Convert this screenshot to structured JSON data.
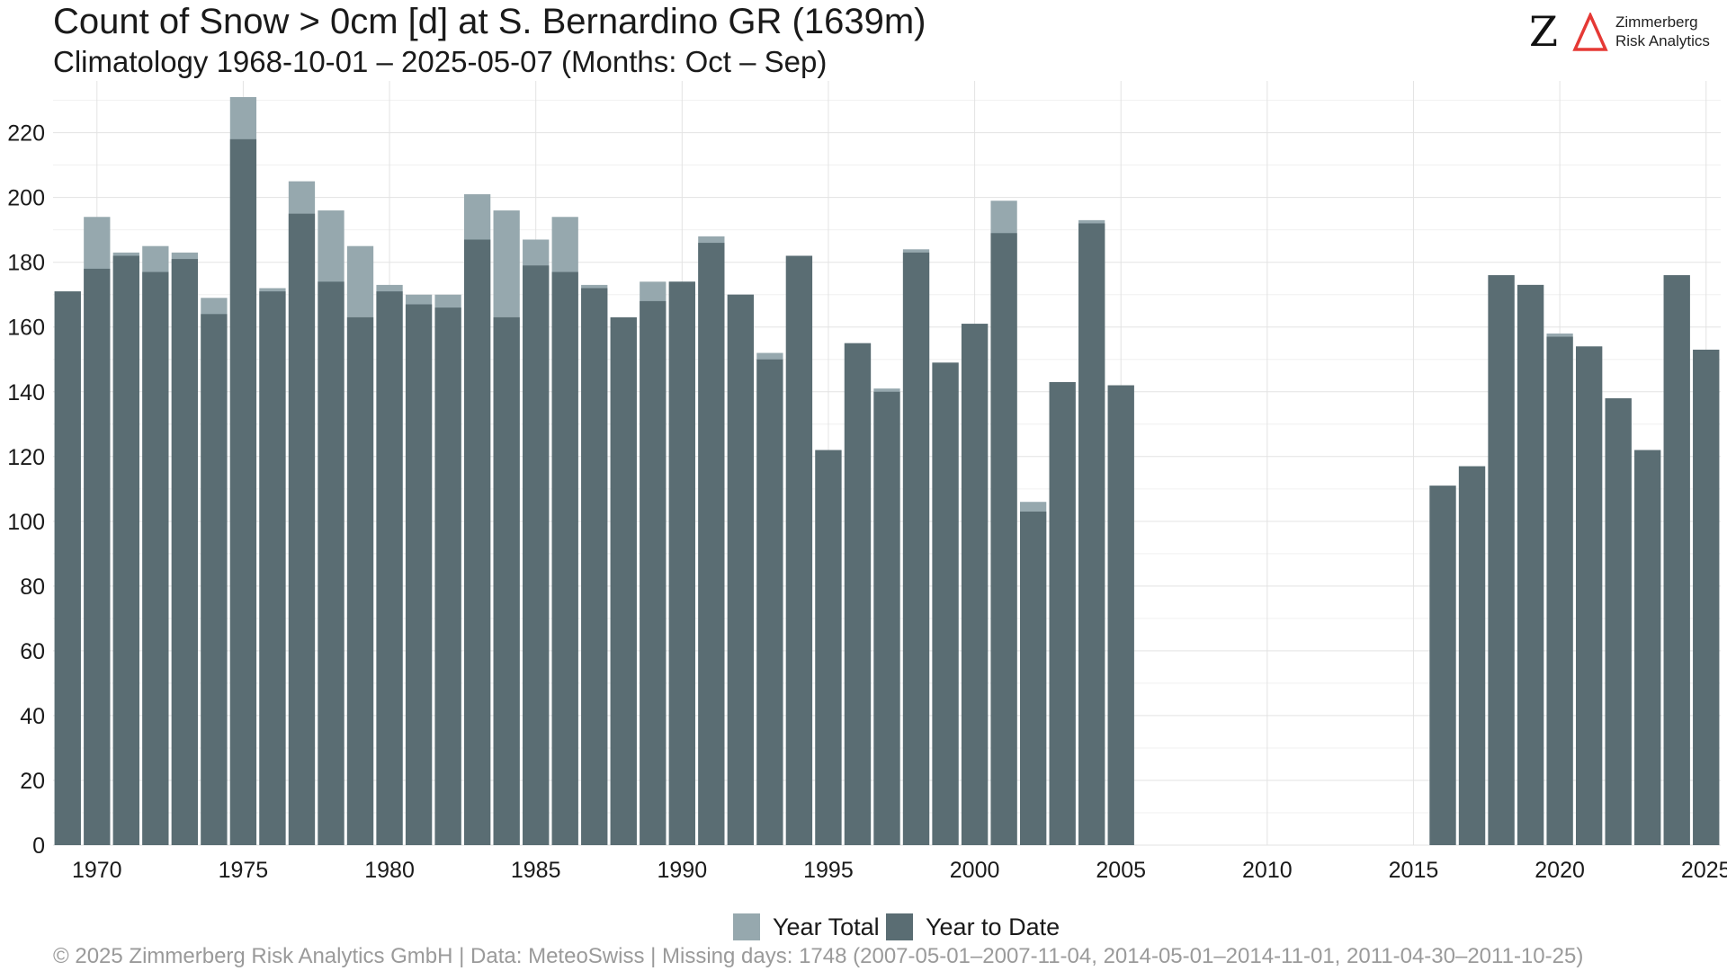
{
  "header": {
    "title": "Count of Snow > 0cm [d] at S. Bernardino  GR (1639m)",
    "subtitle": "Climatology 1968-10-01 – 2025-05-07 (Months: Oct – Sep)"
  },
  "logo": {
    "mark": "Z",
    "name_line1": "Zimmerberg",
    "name_line2": "Risk Analytics",
    "colors": {
      "mark": "#111111",
      "delta": "#e53935"
    }
  },
  "legend": {
    "year_total_label": "Year Total",
    "year_to_date_label": "Year to Date"
  },
  "footer": {
    "text": "©  2025 Zimmerberg Risk Analytics GmbH | Data: MeteoSwiss | Missing days: 1748 (2007-05-01–2007-11-04, 2014-05-01–2014-11-01, 2011-04-30–2011-10-25)"
  },
  "colors": {
    "year_total": "#96a8ae",
    "year_to_date": "#5a6d73",
    "grid": "#e3e3e3",
    "tick_text": "#1a1a1a"
  },
  "chart_data": {
    "type": "bar",
    "stacking": "overlay",
    "x": [
      1969,
      1970,
      1971,
      1972,
      1973,
      1974,
      1975,
      1976,
      1977,
      1978,
      1979,
      1980,
      1981,
      1982,
      1983,
      1984,
      1985,
      1986,
      1987,
      1988,
      1989,
      1990,
      1991,
      1992,
      1993,
      1994,
      1995,
      1996,
      1997,
      1998,
      1999,
      2000,
      2001,
      2002,
      2003,
      2004,
      2005,
      2016,
      2017,
      2018,
      2019,
      2020,
      2021,
      2022,
      2023,
      2024,
      2025
    ],
    "series": [
      {
        "name": "Year Total",
        "values": [
          171,
          194,
          183,
          185,
          183,
          169,
          231,
          172,
          205,
          196,
          185,
          173,
          170,
          170,
          201,
          196,
          187,
          194,
          173,
          163,
          174,
          174,
          188,
          170,
          152,
          182,
          122,
          155,
          141,
          184,
          149,
          161,
          199,
          106,
          143,
          193,
          142,
          111,
          117,
          176,
          173,
          158,
          154,
          138,
          122,
          176,
          153
        ]
      },
      {
        "name": "Year to Date",
        "values": [
          171,
          178,
          182,
          177,
          181,
          164,
          218,
          171,
          195,
          174,
          163,
          171,
          167,
          166,
          187,
          163,
          179,
          177,
          172,
          163,
          168,
          174,
          186,
          170,
          150,
          182,
          122,
          155,
          140,
          183,
          149,
          161,
          189,
          103,
          143,
          192,
          142,
          111,
          117,
          176,
          173,
          157,
          154,
          138,
          122,
          176,
          153
        ]
      }
    ],
    "x_ticks": [
      1970,
      1975,
      1980,
      1985,
      1990,
      1995,
      2000,
      2005,
      2010,
      2015,
      2020,
      2025
    ],
    "y_ticks": [
      0,
      20,
      40,
      60,
      80,
      100,
      120,
      140,
      160,
      180,
      200,
      220
    ],
    "xlim": [
      1968.5,
      2025.5
    ],
    "ylim": [
      0,
      236
    ],
    "grid": true,
    "legend_position": "bottom"
  }
}
